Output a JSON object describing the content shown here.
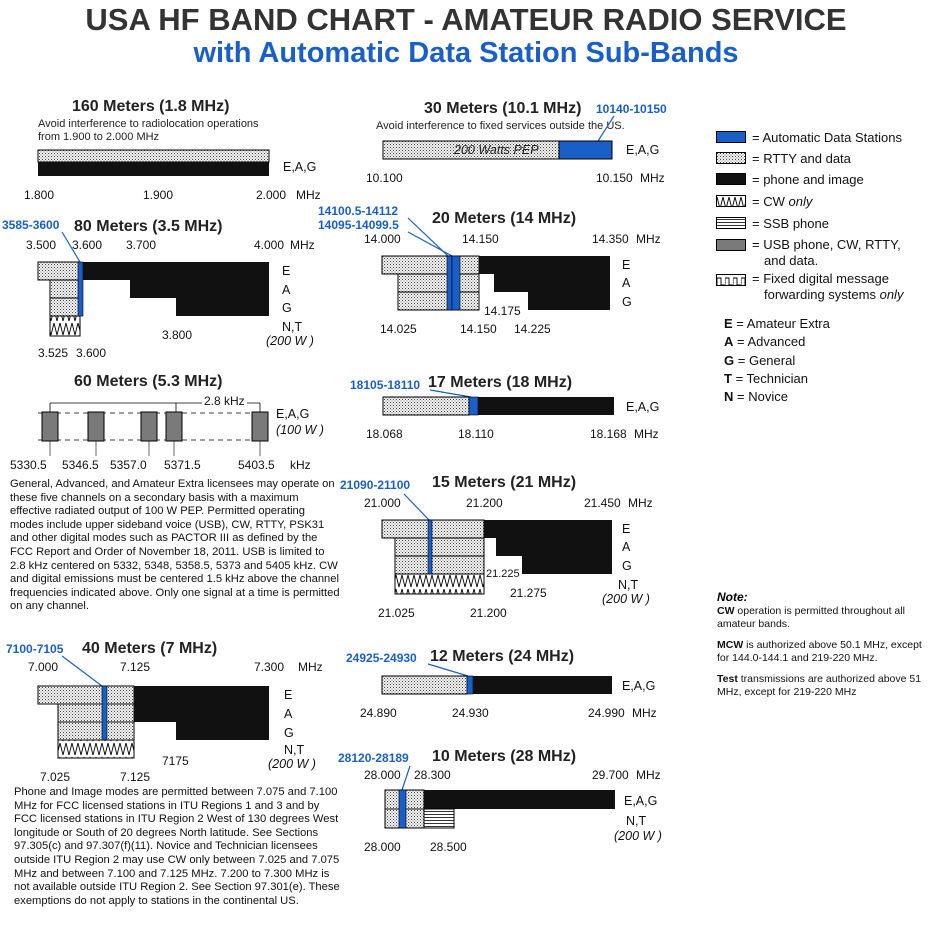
{
  "header": {
    "title": "USA HF BAND CHART - AMATEUR RADIO SERVICE",
    "subtitle": "with Automatic Data Station Sub-Bands"
  },
  "colors": {
    "auto_data": "#1a5fc8",
    "phone_image": "#111111",
    "usb": "#7a7a7a",
    "title_blue": "#1a5fc8"
  },
  "legend": {
    "auto_data": "= Automatic Data Stations",
    "rtty": "= RTTY and data",
    "phone": "= phone and image",
    "cw_prefix": "= CW ",
    "cw_only": "only",
    "ssb": "= SSB phone",
    "usb_1": "= USB phone, CW, RTTY,",
    "usb_2": "and data.",
    "fixed_1": "= Fixed digital message",
    "fixed_2": "forwarding systems ",
    "fixed_only": "only"
  },
  "classes": [
    {
      "key": "E",
      "label": "= Amateur Extra"
    },
    {
      "key": "A",
      "label": "= Advanced"
    },
    {
      "key": "G",
      "label": "= General"
    },
    {
      "key": "T",
      "label": "= Technician"
    },
    {
      "key": "N",
      "label": "= Novice"
    }
  ],
  "notes": {
    "heading": "Note:",
    "n1_bold": "CW",
    "n1_text": " operation is permitted throughout all amateur bands.",
    "n2_bold": "MCW",
    "n2_text": " is authorized above 50.1 MHz, except for 144.0-144.1 and 219-220 MHz.",
    "n3_bold": "Test",
    "n3_text": " transmissions are authorized above 51 MHz, except for 219-220 MHz"
  },
  "common": {
    "mhz": "MHz",
    "khz": "kHz",
    "power_200": "(200 W )",
    "power_100": "(100 W )"
  },
  "band160": {
    "title": "160 Meters (1.8 MHz)",
    "note": "Avoid interference to radiolocation operations from 1.900 to 2.000 MHz",
    "classes": "E,A,G",
    "ticks": [
      "1.800",
      "1.900",
      "2.000"
    ],
    "unit": "MHz"
  },
  "band80": {
    "title": "80 Meters (3.5 MHz)",
    "auto": "3585-3600",
    "top_ticks": [
      "3.500",
      "3.600",
      "3.700",
      "4.000"
    ],
    "unit": "MHz",
    "bottom_ticks": [
      "3.525",
      "3.600"
    ],
    "mid_tick": "3.800",
    "rows": [
      "E",
      "A",
      "G",
      "N,T"
    ]
  },
  "band60": {
    "title": "60 Meters (5.3 MHz)",
    "spacing": "2.8 kHz",
    "classes": "E,A,G",
    "ticks": [
      "5330.5",
      "5346.5",
      "5357.0",
      "5371.5",
      "5403.5"
    ],
    "unit": "kHz",
    "paragraph": "General, Advanced, and Amateur Extra licensees may operate on these five channels on a secondary basis with a maximum effective radiated output of 100 W PEP. Permitted operating modes include upper sideband voice (USB), CW, RTTY, PSK31 and other digital modes such as PACTOR III as defined by the FCC Report and Order of November 18, 2011. USB is limited to 2.8 kHz centered on 5332, 5348, 5358.5, 5373 and 5405 kHz. CW and digital emissions must be centered 1.5 kHz above the channel frequencies indicated above. Only one signal at a time is permitted on any channel."
  },
  "band40": {
    "title": "40 Meters (7 MHz)",
    "auto": "7100-7105",
    "top_ticks": [
      "7.000",
      "7.125",
      "7.300"
    ],
    "unit": "MHz",
    "bottom_ticks": [
      "7.025",
      "7.125"
    ],
    "mid_tick": "7175",
    "rows": [
      "E",
      "A",
      "G",
      "N,T"
    ],
    "paragraph": "Phone and Image modes are permitted between 7.075 and 7.100 MHz for FCC licensed stations in ITU Regions 1 and 3 and by FCC licensed stations in ITU Region 2 West of 130 degrees West longitude or South of 20 degrees North latitude. See Sections 97.305(c) and 97.307(f)(11). Novice and Technician  licensees outside ITU Region 2 may use CW only between 7.025 and 7.075 MHz and between 7.100 and 7.125 MHz. 7.200 to 7.300 MHz is not available outside ITU Region 2. See Section 97.301(e). These exemptions do not apply to stations in the continental US."
  },
  "band30": {
    "title": "30 Meters (10.1 MHz)",
    "auto": "10140-10150",
    "note": "Avoid interference to fixed services outside the US.",
    "power": "200 Watts PEP",
    "classes": "E,A,G",
    "ticks": [
      "10.100",
      "10.150"
    ],
    "unit": "MHz"
  },
  "band20": {
    "title": "20 Meters (14 MHz)",
    "auto1": "14100.5-14112",
    "auto2": "14095-14099.5",
    "top_ticks": [
      "14.000",
      "14.150",
      "14.350"
    ],
    "unit": "MHz",
    "bottom_ticks": [
      "14.025",
      "14.150",
      "14.225"
    ],
    "mid_tick": "14.175",
    "rows": [
      "E",
      "A",
      "G"
    ]
  },
  "band17": {
    "title": "17 Meters (18 MHz)",
    "auto": "18105-18110",
    "classes": "E,A,G",
    "ticks": [
      "18.068",
      "18.110",
      "18.168"
    ],
    "unit": "MHz"
  },
  "band15": {
    "title": "15 Meters (21 MHz)",
    "auto": "21090-21100",
    "top_ticks": [
      "21.000",
      "21.200",
      "21.450"
    ],
    "unit": "MHz",
    "bottom_ticks": [
      "21.025",
      "21.200"
    ],
    "mid_ticks": [
      "21.225",
      "21.275"
    ],
    "rows": [
      "E",
      "A",
      "G",
      "N,T"
    ]
  },
  "band12": {
    "title": "12 Meters (24 MHz)",
    "auto": "24925-24930",
    "classes": "E,A,G",
    "ticks": [
      "24.890",
      "24.930",
      "24.990"
    ],
    "unit": "MHz"
  },
  "band10": {
    "title": "10 Meters (28 MHz)",
    "auto": "28120-28189",
    "top_ticks": [
      "28.000",
      "28.300",
      "29.700"
    ],
    "unit": "MHz",
    "bottom_ticks": [
      "28.000",
      "28.500"
    ],
    "classes": "E,A,G",
    "novice": "N,T"
  }
}
